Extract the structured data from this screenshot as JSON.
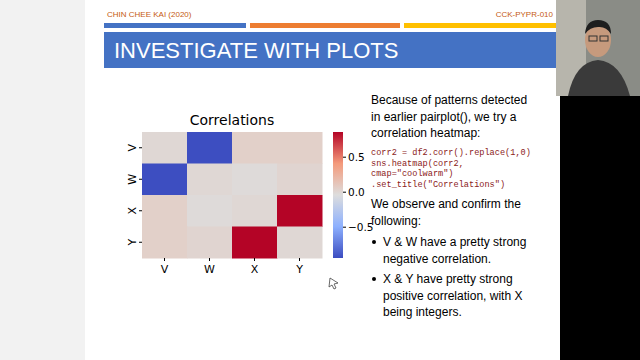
{
  "header": {
    "author": "CHIN CHEE KAI (2020)",
    "code": "CCK-PYPR-010"
  },
  "title": "INVESTIGATE WITH PLOTS",
  "intro": [
    "Because of patterns detected",
    "in earlier pairplot(), we try a",
    "correlation heatmap:"
  ],
  "code": [
    "corr2 = df2.corr().replace(1,0)",
    "sns.heatmap(corr2,",
    "    cmap=\"coolwarm\")",
    "   .set_title(\"Correlations\")"
  ],
  "observe": [
    "We observe and confirm the",
    "following:"
  ],
  "bullets": [
    [
      "V & W have a pretty strong",
      "negative correlation."
    ],
    [
      "X & Y have pretty strong",
      "positive correlation, with X",
      "being integers."
    ]
  ],
  "chart_data": {
    "type": "heatmap",
    "title": "Correlations",
    "categories": [
      "V",
      "W",
      "X",
      "Y"
    ],
    "row_categories": [
      "V",
      "W",
      "X",
      "Y"
    ],
    "cells": [
      [
        0,
        -0.93,
        0.05,
        0.05
      ],
      [
        -0.93,
        0,
        -0.02,
        0.02
      ],
      [
        0.05,
        -0.02,
        0,
        0.86
      ],
      [
        0.05,
        0.02,
        0.86,
        0
      ]
    ],
    "colorbar": {
      "range": [
        -0.94,
        0.86
      ],
      "ticks": [
        {
          "value": -0.5,
          "label": "−0.5"
        },
        {
          "value": 0,
          "label": "0.0"
        },
        {
          "value": 0.5,
          "label": "0.5"
        }
      ]
    }
  }
}
